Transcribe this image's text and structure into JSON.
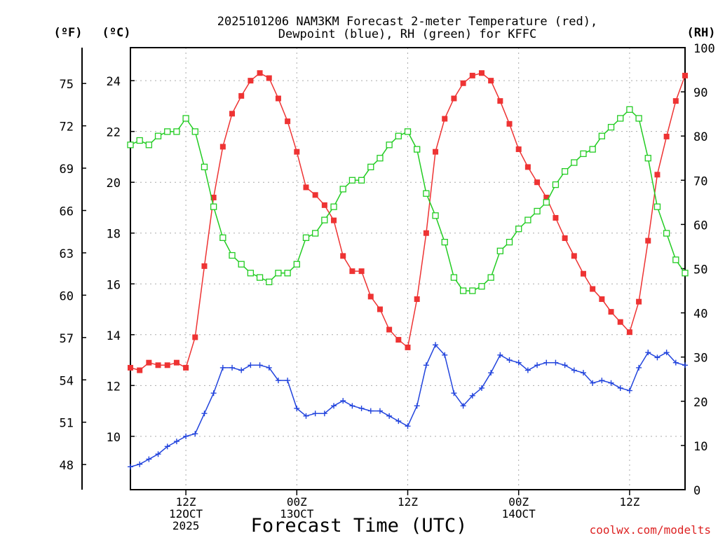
{
  "chart_data": {
    "type": "line",
    "title_line1": "2025101206 NAM3KM Forecast 2-meter Temperature (red),",
    "title_line2": "Dewpoint (blue), RH (green) for KFFC",
    "xlabel": "Forecast Time (UTC)",
    "left_outer_label": "(ºF)",
    "left_inner_label": "(ºC)",
    "right_label": "(RH)",
    "watermark": "coolwx.com/modelts",
    "xlim": [
      0,
      60
    ],
    "ylim_c": [
      7.9,
      25.3
    ],
    "ylim_rh": [
      0,
      100
    ],
    "yticks_c": [
      10,
      12,
      14,
      16,
      18,
      20,
      22,
      24
    ],
    "yticks_f": [
      48,
      51,
      54,
      57,
      60,
      63,
      66,
      69,
      72,
      75
    ],
    "yticks_rh": [
      0,
      10,
      20,
      30,
      40,
      50,
      60,
      70,
      80,
      90,
      100
    ],
    "xticks": [
      {
        "x": 6,
        "lines": [
          "12Z",
          "12OCT",
          "2025"
        ]
      },
      {
        "x": 18,
        "lines": [
          "00Z",
          "13OCT"
        ]
      },
      {
        "x": 30,
        "lines": [
          "12Z"
        ]
      },
      {
        "x": 42,
        "lines": [
          "00Z",
          "14OCT"
        ]
      },
      {
        "x": 54,
        "lines": [
          "12Z"
        ]
      }
    ],
    "x": [
      0,
      1,
      2,
      3,
      4,
      5,
      6,
      7,
      8,
      9,
      10,
      11,
      12,
      13,
      14,
      15,
      16,
      17,
      18,
      19,
      20,
      21,
      22,
      23,
      24,
      25,
      26,
      27,
      28,
      29,
      30,
      31,
      32,
      33,
      34,
      35,
      36,
      37,
      38,
      39,
      40,
      41,
      42,
      43,
      44,
      45,
      46,
      47,
      48,
      49,
      50,
      51,
      52,
      53,
      54,
      55,
      56,
      57,
      58,
      59,
      60
    ],
    "series": [
      {
        "name": "Temperature",
        "unit": "C",
        "color": "#ee3333",
        "marker": "filled-square",
        "values": [
          12.7,
          12.6,
          12.9,
          12.8,
          12.8,
          12.9,
          12.7,
          13.9,
          16.7,
          19.4,
          21.4,
          22.7,
          23.4,
          24.0,
          24.3,
          24.1,
          23.3,
          22.4,
          21.2,
          19.8,
          19.5,
          19.1,
          18.5,
          17.1,
          16.5,
          16.5,
          15.5,
          15.0,
          14.2,
          13.8,
          13.5,
          15.4,
          18.0,
          21.2,
          22.5,
          23.3,
          23.9,
          24.2,
          24.3,
          24.0,
          23.2,
          22.3,
          21.3,
          20.6,
          20.0,
          19.4,
          18.6,
          17.8,
          17.1,
          16.4,
          15.8,
          15.4,
          14.9,
          14.5,
          14.1,
          15.3,
          17.7,
          20.3,
          21.8,
          23.2,
          24.2
        ]
      },
      {
        "name": "Dewpoint",
        "unit": "C",
        "color": "#2244dd",
        "marker": "plus",
        "values": [
          8.8,
          8.9,
          9.1,
          9.3,
          9.6,
          9.8,
          10.0,
          10.1,
          10.9,
          11.7,
          12.7,
          12.7,
          12.6,
          12.8,
          12.8,
          12.7,
          12.2,
          12.2,
          11.1,
          10.8,
          10.9,
          10.9,
          11.2,
          11.4,
          11.2,
          11.1,
          11.0,
          11.0,
          10.8,
          10.6,
          10.4,
          11.2,
          12.8,
          13.6,
          13.2,
          11.7,
          11.2,
          11.6,
          11.9,
          12.5,
          13.2,
          13.0,
          12.9,
          12.6,
          12.8,
          12.9,
          12.9,
          12.8,
          12.6,
          12.5,
          12.1,
          12.2,
          12.1,
          11.9,
          11.8,
          12.7,
          13.3,
          13.1,
          13.3,
          12.9,
          12.8
        ]
      },
      {
        "name": "RH",
        "unit": "%",
        "color": "#22cc22",
        "marker": "open-square",
        "values": [
          78,
          79,
          78,
          80,
          81,
          81,
          84,
          81,
          73,
          64,
          57,
          53,
          51,
          49,
          48,
          47,
          49,
          49,
          51,
          57,
          58,
          61,
          64,
          68,
          70,
          70,
          73,
          75,
          78,
          80,
          81,
          77,
          67,
          62,
          56,
          48,
          45,
          45,
          46,
          48,
          54,
          56,
          59,
          61,
          63,
          65,
          69,
          72,
          74,
          76,
          77,
          80,
          82,
          84,
          86,
          84,
          75,
          64,
          58,
          52,
          49
        ]
      }
    ]
  }
}
